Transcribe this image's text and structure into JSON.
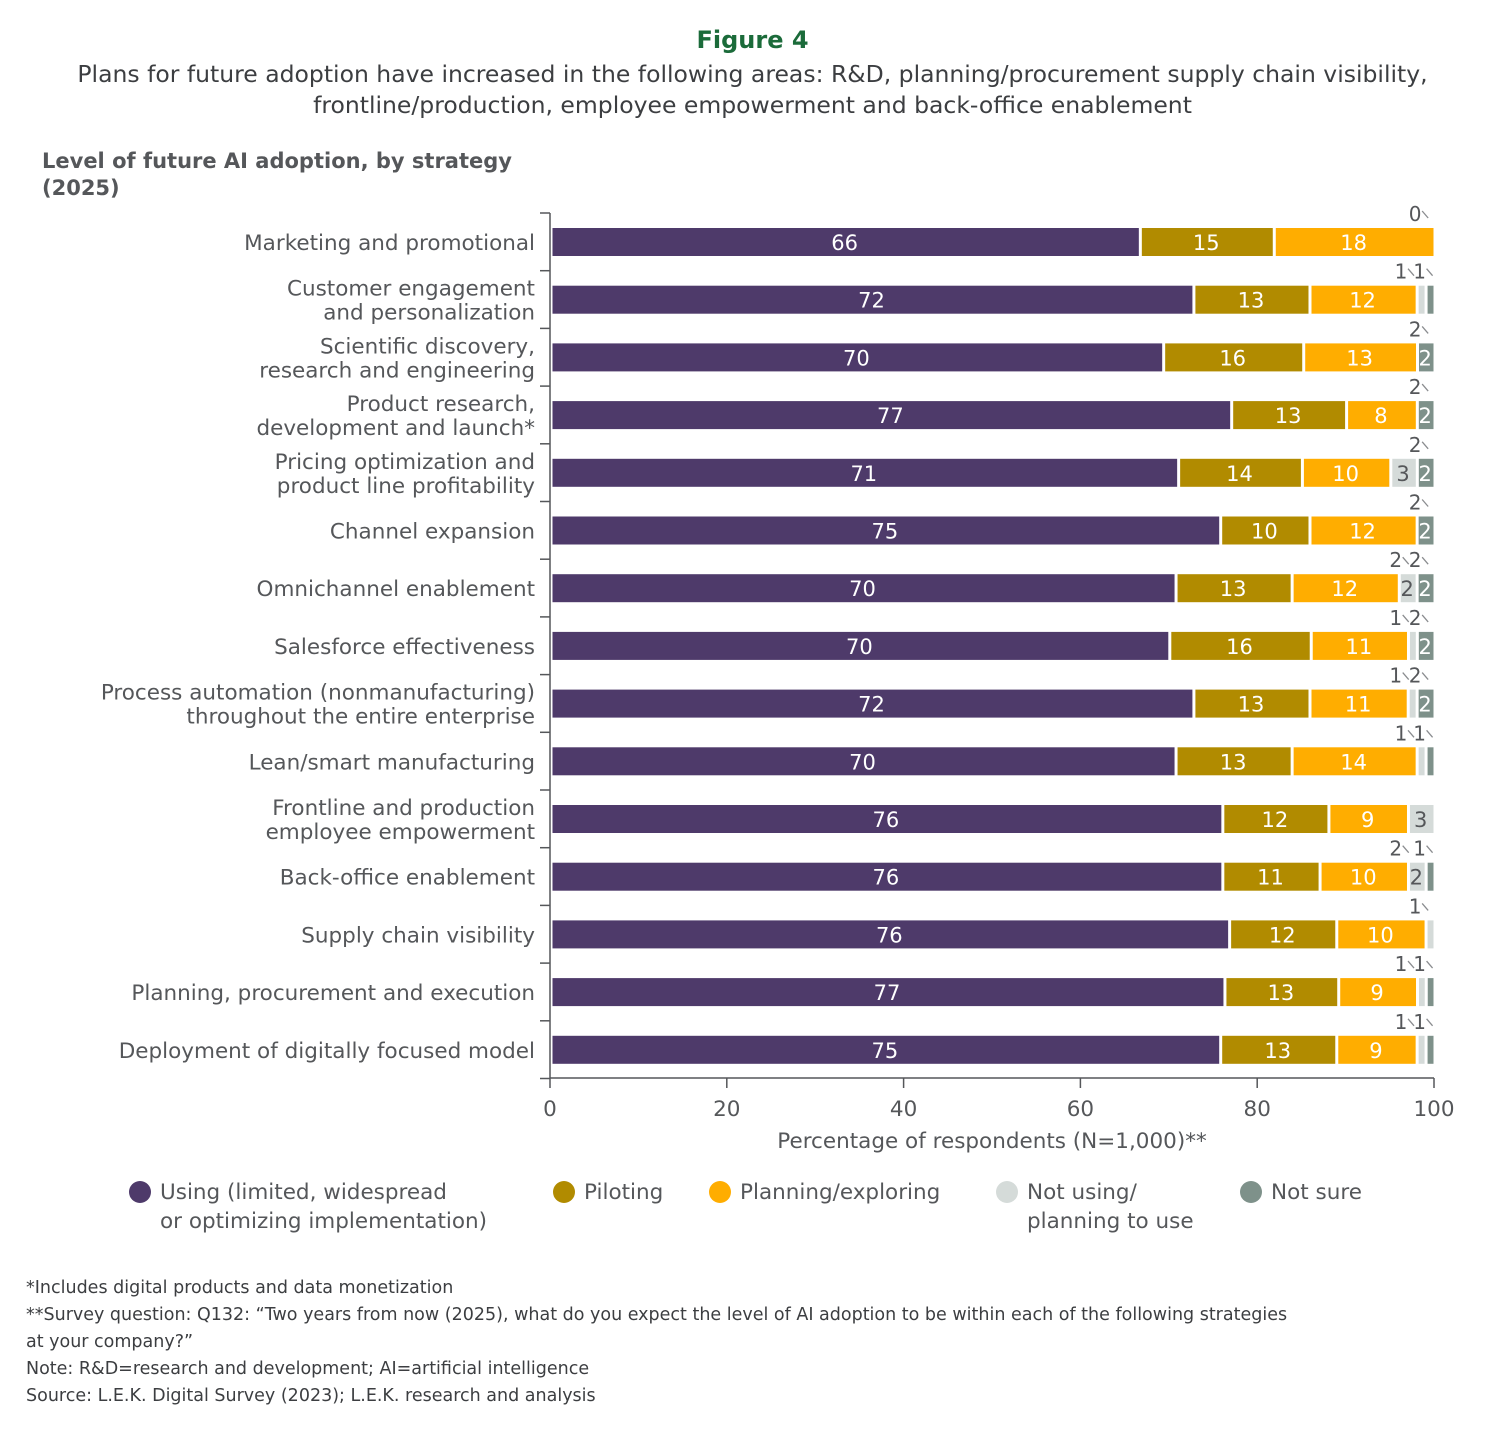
{
  "header": {
    "figure_label": "Figure 4",
    "subtitle_line1": "Plans for future adoption have increased in the following areas: R&D, planning/procurement supply chain visibility,",
    "subtitle_line2": "frontline/production, employee empowerment and back-office enablement"
  },
  "chart_title": {
    "line1": "Level of future AI adoption, by strategy",
    "line2": "(2025)"
  },
  "colors": {
    "using": "#4e3a6a",
    "piloting": "#b18b00",
    "planning": "#ffad00",
    "not_using": "#d5dbd9",
    "not_sure": "#7e918a",
    "axis": "#55575a"
  },
  "legend": [
    {
      "key": "using",
      "line1": "Using (limited, widespread",
      "line2": "or optimizing implementation)"
    },
    {
      "key": "piloting",
      "line1": "Piloting",
      "line2": ""
    },
    {
      "key": "planning",
      "line1": "Planning/exploring",
      "line2": ""
    },
    {
      "key": "not_using",
      "line1": "Not using/",
      "line2": "planning to use"
    },
    {
      "key": "not_sure",
      "line1": "Not sure",
      "line2": ""
    }
  ],
  "chart_data": {
    "type": "bar",
    "orientation": "horizontal",
    "stacked": true,
    "xlabel": "Percentage of respondents (N=1,000)**",
    "xlim": [
      0,
      100
    ],
    "xticks": [
      0,
      20,
      40,
      60,
      80,
      100
    ],
    "grid": false,
    "legend_position": "bottom",
    "categories": [
      [
        "Marketing and promotional"
      ],
      [
        "Customer engagement",
        "and personalization"
      ],
      [
        "Scientific discovery,",
        "research and engineering"
      ],
      [
        "Product research,",
        "development and launch*"
      ],
      [
        "Pricing optimization and",
        "product line profitability"
      ],
      [
        "Channel expansion"
      ],
      [
        "Omnichannel enablement"
      ],
      [
        "Salesforce effectiveness"
      ],
      [
        "Process automation (nonmanufacturing)",
        "throughout the entire enterprise"
      ],
      [
        "Lean/smart manufacturing"
      ],
      [
        "Frontline and production",
        "employee empowerment"
      ],
      [
        "Back-office enablement"
      ],
      [
        "Supply chain visibility"
      ],
      [
        "Planning, procurement and execution"
      ],
      [
        "Deployment of digitally focused model"
      ]
    ],
    "series": [
      {
        "name": "Using (limited, widespread or optimizing implementation)",
        "key": "using",
        "values": [
          66,
          72,
          70,
          77,
          71,
          75,
          70,
          70,
          72,
          70,
          76,
          76,
          76,
          77,
          75
        ]
      },
      {
        "name": "Piloting",
        "key": "piloting",
        "values": [
          15,
          13,
          16,
          13,
          14,
          10,
          13,
          16,
          13,
          13,
          12,
          11,
          12,
          13,
          13
        ]
      },
      {
        "name": "Planning/exploring",
        "key": "planning",
        "values": [
          18,
          12,
          13,
          8,
          10,
          12,
          12,
          11,
          11,
          14,
          9,
          10,
          10,
          9,
          9
        ]
      },
      {
        "name": "Not using/planning to use",
        "key": "not_using",
        "values": [
          0,
          1,
          0,
          0,
          3,
          0,
          2,
          1,
          1,
          1,
          3,
          2,
          1,
          1,
          1
        ]
      },
      {
        "name": "Not sure",
        "key": "not_sure",
        "values": [
          0,
          1,
          2,
          2,
          2,
          2,
          2,
          2,
          2,
          1,
          0,
          1,
          0,
          1,
          1
        ]
      }
    ],
    "outside_labels": [
      [
        {
          "text": "0",
          "pos": 0.99
        }
      ],
      [
        {
          "text": "1",
          "pos": 0.974
        },
        {
          "text": "1",
          "pos": 0.995
        }
      ],
      [
        {
          "text": "2",
          "pos": 0.99
        }
      ],
      [
        {
          "text": "2",
          "pos": 0.99
        }
      ],
      [
        {
          "text": "2",
          "pos": 0.99
        }
      ],
      [
        {
          "text": "2",
          "pos": 0.99
        }
      ],
      [
        {
          "text": "2",
          "pos": 0.968
        },
        {
          "text": "2",
          "pos": 0.99
        }
      ],
      [
        {
          "text": "1",
          "pos": 0.968
        },
        {
          "text": "2",
          "pos": 0.99
        }
      ],
      [
        {
          "text": "1",
          "pos": 0.968
        },
        {
          "text": "2",
          "pos": 0.99
        }
      ],
      [
        {
          "text": "1",
          "pos": 0.974
        },
        {
          "text": "1",
          "pos": 0.995
        }
      ],
      [],
      [
        {
          "text": "2",
          "pos": 0.968
        },
        {
          "text": "1",
          "pos": 0.995
        }
      ],
      [
        {
          "text": "1",
          "pos": 0.99
        }
      ],
      [
        {
          "text": "1",
          "pos": 0.974
        },
        {
          "text": "1",
          "pos": 0.995
        }
      ],
      [
        {
          "text": "1",
          "pos": 0.974
        },
        {
          "text": "1",
          "pos": 0.995
        }
      ]
    ]
  },
  "footnotes": [
    "*Includes digital products and data monetization",
    "**Survey question: Q132: “Two years from now (2025), what do you expect the level of AI adoption to be within each of the following strategies",
    "at your company?”",
    "Note: R&D=research and development; AI=artificial intelligence",
    "Source: L.E.K. Digital Survey (2023); L.E.K. research and analysis"
  ]
}
